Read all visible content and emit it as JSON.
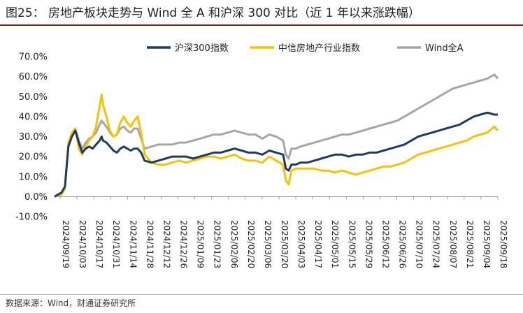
{
  "header": {
    "title": "图25：  房地产板块走势与 Wind 全 A 和沪深 300 对比（近 1 年以来涨跌幅）"
  },
  "footer": {
    "source": "数据来源：Wind，财通证券研究所"
  },
  "colors": {
    "csi300": "#1f3b64",
    "realestate": "#f7c300",
    "windA": "#a6a6a6",
    "accent_rule": "#8a1d1d"
  },
  "chart_data": {
    "type": "line",
    "title": "",
    "xlabel": "",
    "ylabel": "",
    "ylim": [
      -10,
      70
    ],
    "yticks": [
      -10,
      0,
      10,
      20,
      30,
      40,
      50,
      60,
      70
    ],
    "ytick_labels": [
      "-10.0%",
      "0.0%",
      "10.0%",
      "20.0%",
      "30.0%",
      "40.0%",
      "50.0%",
      "60.0%",
      "70.0%"
    ],
    "legend": {
      "position": "top-right",
      "entries": [
        "沪深300指数",
        "中信房地产行业指数",
        "Wind全A"
      ]
    },
    "grid": false,
    "x_tick_labels": [
      "2024/09/19",
      "2024/10/03",
      "2024/10/17",
      "2024/10/31",
      "2024/11/14",
      "2024/11/28",
      "2024/12/12",
      "2024/12/26",
      "2025/01/09",
      "2025/01/23",
      "2025/02/06",
      "2025/02/20",
      "2025/03/06",
      "2025/03/20",
      "2025/04/03",
      "2025/04/17",
      "2025/05/01",
      "2025/05/15",
      "2025/05/29",
      "2025/06/12",
      "2025/06/26",
      "2025/07/10",
      "2025/07/24",
      "2025/08/07",
      "2025/08/21",
      "2025/09/04",
      "2025/09/18"
    ],
    "series": [
      {
        "name": "沪深300指数",
        "color": "#1f3b64",
        "points": [
          [
            0,
            0
          ],
          [
            1,
            2
          ],
          [
            1.5,
            5
          ],
          [
            2,
            25
          ],
          [
            2.5,
            30
          ],
          [
            3,
            33
          ],
          [
            3.5,
            27
          ],
          [
            4,
            22
          ],
          [
            4.5,
            24
          ],
          [
            5,
            25
          ],
          [
            5.5,
            24
          ],
          [
            6,
            26
          ],
          [
            6.5,
            28
          ],
          [
            6.8,
            30
          ],
          [
            7,
            28
          ],
          [
            7.5,
            27
          ],
          [
            8,
            25
          ],
          [
            8.5,
            23
          ],
          [
            9,
            22
          ],
          [
            9.5,
            24
          ],
          [
            10,
            25
          ],
          [
            10.5,
            24
          ],
          [
            11,
            23
          ],
          [
            11.5,
            24
          ],
          [
            12,
            24
          ],
          [
            12.5,
            22
          ],
          [
            13,
            18
          ],
          [
            14,
            17
          ],
          [
            15,
            18
          ],
          [
            16,
            19
          ],
          [
            17,
            20
          ],
          [
            18,
            20
          ],
          [
            19,
            20
          ],
          [
            20,
            19
          ],
          [
            21,
            20
          ],
          [
            22,
            21
          ],
          [
            23,
            22
          ],
          [
            24,
            22
          ],
          [
            25,
            23
          ],
          [
            26,
            24
          ],
          [
            27,
            23
          ],
          [
            28,
            22
          ],
          [
            29,
            22
          ],
          [
            30,
            21
          ],
          [
            31,
            23
          ],
          [
            32,
            22
          ],
          [
            33,
            21
          ],
          [
            33.4,
            14
          ],
          [
            33.8,
            13
          ],
          [
            34.2,
            16
          ],
          [
            34.8,
            16
          ],
          [
            35.5,
            17
          ],
          [
            36.5,
            17
          ],
          [
            37.5,
            18
          ],
          [
            38.5,
            19
          ],
          [
            39.5,
            20
          ],
          [
            40.5,
            21
          ],
          [
            41.5,
            21
          ],
          [
            42.5,
            20
          ],
          [
            43.5,
            21
          ],
          [
            44.5,
            21
          ],
          [
            45.5,
            22
          ],
          [
            46.5,
            22
          ],
          [
            47.5,
            23
          ],
          [
            48.5,
            24
          ],
          [
            49.5,
            25
          ],
          [
            50.5,
            26
          ],
          [
            51.5,
            28
          ],
          [
            52.5,
            30
          ],
          [
            53.5,
            31
          ],
          [
            54.5,
            32
          ],
          [
            55.5,
            33
          ],
          [
            56.5,
            34
          ],
          [
            57.5,
            35
          ],
          [
            58.5,
            36
          ],
          [
            59.5,
            38
          ],
          [
            60.5,
            40
          ],
          [
            61.5,
            41
          ],
          [
            62.5,
            42
          ],
          [
            63.5,
            41
          ],
          [
            64,
            41
          ]
        ]
      },
      {
        "name": "中信房地产行业指数",
        "color": "#f7c300",
        "points": [
          [
            0,
            0
          ],
          [
            1,
            1
          ],
          [
            1.5,
            4
          ],
          [
            2,
            27
          ],
          [
            2.5,
            32
          ],
          [
            3,
            34
          ],
          [
            3.5,
            24
          ],
          [
            4,
            21
          ],
          [
            4.5,
            25
          ],
          [
            5,
            28
          ],
          [
            5.5,
            30
          ],
          [
            6,
            35
          ],
          [
            6.5,
            45
          ],
          [
            6.8,
            51
          ],
          [
            7,
            46
          ],
          [
            7.5,
            40
          ],
          [
            8,
            33
          ],
          [
            8.5,
            30
          ],
          [
            9,
            31
          ],
          [
            9.5,
            37
          ],
          [
            10,
            40
          ],
          [
            10.5,
            37
          ],
          [
            11,
            35
          ],
          [
            11.5,
            38
          ],
          [
            12,
            40
          ],
          [
            12.5,
            32
          ],
          [
            13,
            21
          ],
          [
            14,
            17
          ],
          [
            15,
            16
          ],
          [
            16,
            16
          ],
          [
            17,
            17
          ],
          [
            18,
            18
          ],
          [
            19,
            17
          ],
          [
            20,
            18
          ],
          [
            21,
            19
          ],
          [
            22,
            20
          ],
          [
            23,
            20
          ],
          [
            24,
            19
          ],
          [
            25,
            20
          ],
          [
            26,
            21
          ],
          [
            27,
            19
          ],
          [
            28,
            18
          ],
          [
            29,
            18
          ],
          [
            30,
            17
          ],
          [
            31,
            20
          ],
          [
            32,
            18
          ],
          [
            33,
            16
          ],
          [
            33.4,
            8
          ],
          [
            33.8,
            6
          ],
          [
            34.2,
            13
          ],
          [
            34.8,
            14
          ],
          [
            35.5,
            14
          ],
          [
            36.5,
            14
          ],
          [
            37.5,
            14
          ],
          [
            38.5,
            13
          ],
          [
            39.5,
            13
          ],
          [
            40.5,
            12
          ],
          [
            41.5,
            13
          ],
          [
            42.5,
            12
          ],
          [
            43.5,
            11
          ],
          [
            44.5,
            12
          ],
          [
            45.5,
            13
          ],
          [
            46.5,
            14
          ],
          [
            47.5,
            15
          ],
          [
            48.5,
            15
          ],
          [
            49.5,
            16
          ],
          [
            50.5,
            17
          ],
          [
            51.5,
            19
          ],
          [
            52.5,
            21
          ],
          [
            53.5,
            22
          ],
          [
            54.5,
            23
          ],
          [
            55.5,
            24
          ],
          [
            56.5,
            25
          ],
          [
            57.5,
            26
          ],
          [
            58.5,
            27
          ],
          [
            59.5,
            28
          ],
          [
            60.5,
            30
          ],
          [
            61.5,
            31
          ],
          [
            62.5,
            32
          ],
          [
            63.5,
            35
          ],
          [
            64,
            33
          ]
        ]
      },
      {
        "name": "Wind全A",
        "color": "#a6a6a6",
        "points": [
          [
            0,
            0
          ],
          [
            1,
            2
          ],
          [
            1.5,
            5
          ],
          [
            2,
            26
          ],
          [
            2.5,
            31
          ],
          [
            3,
            34
          ],
          [
            3.5,
            28
          ],
          [
            4,
            24
          ],
          [
            4.5,
            27
          ],
          [
            5,
            29
          ],
          [
            5.5,
            30
          ],
          [
            6,
            32
          ],
          [
            6.5,
            36
          ],
          [
            6.8,
            38
          ],
          [
            7,
            37
          ],
          [
            7.5,
            35
          ],
          [
            8,
            32
          ],
          [
            8.5,
            30
          ],
          [
            9,
            31
          ],
          [
            9.5,
            34
          ],
          [
            10,
            35
          ],
          [
            10.5,
            33
          ],
          [
            11,
            32
          ],
          [
            11.5,
            34
          ],
          [
            12,
            34
          ],
          [
            12.5,
            29
          ],
          [
            13,
            24
          ],
          [
            14,
            25
          ],
          [
            15,
            26
          ],
          [
            16,
            26
          ],
          [
            17,
            26
          ],
          [
            18,
            27
          ],
          [
            19,
            27
          ],
          [
            20,
            28
          ],
          [
            21,
            29
          ],
          [
            22,
            30
          ],
          [
            23,
            31
          ],
          [
            24,
            31
          ],
          [
            25,
            32
          ],
          [
            26,
            33
          ],
          [
            27,
            32
          ],
          [
            28,
            31
          ],
          [
            29,
            31
          ],
          [
            30,
            29
          ],
          [
            31,
            31
          ],
          [
            32,
            30
          ],
          [
            33,
            28
          ],
          [
            33.4,
            21
          ],
          [
            33.8,
            19
          ],
          [
            34.2,
            24
          ],
          [
            34.8,
            24
          ],
          [
            35.5,
            25
          ],
          [
            36.5,
            26
          ],
          [
            37.5,
            27
          ],
          [
            38.5,
            28
          ],
          [
            39.5,
            29
          ],
          [
            40.5,
            30
          ],
          [
            41.5,
            31
          ],
          [
            42.5,
            31
          ],
          [
            43.5,
            32
          ],
          [
            44.5,
            33
          ],
          [
            45.5,
            34
          ],
          [
            46.5,
            35
          ],
          [
            47.5,
            36
          ],
          [
            48.5,
            37
          ],
          [
            49.5,
            38
          ],
          [
            50.5,
            40
          ],
          [
            51.5,
            42
          ],
          [
            52.5,
            44
          ],
          [
            53.5,
            46
          ],
          [
            54.5,
            48
          ],
          [
            55.5,
            50
          ],
          [
            56.5,
            52
          ],
          [
            57.5,
            54
          ],
          [
            58.5,
            55
          ],
          [
            59.5,
            56
          ],
          [
            60.5,
            57
          ],
          [
            61.5,
            58
          ],
          [
            62.5,
            59
          ],
          [
            63.5,
            61
          ],
          [
            64,
            59
          ]
        ]
      }
    ]
  }
}
